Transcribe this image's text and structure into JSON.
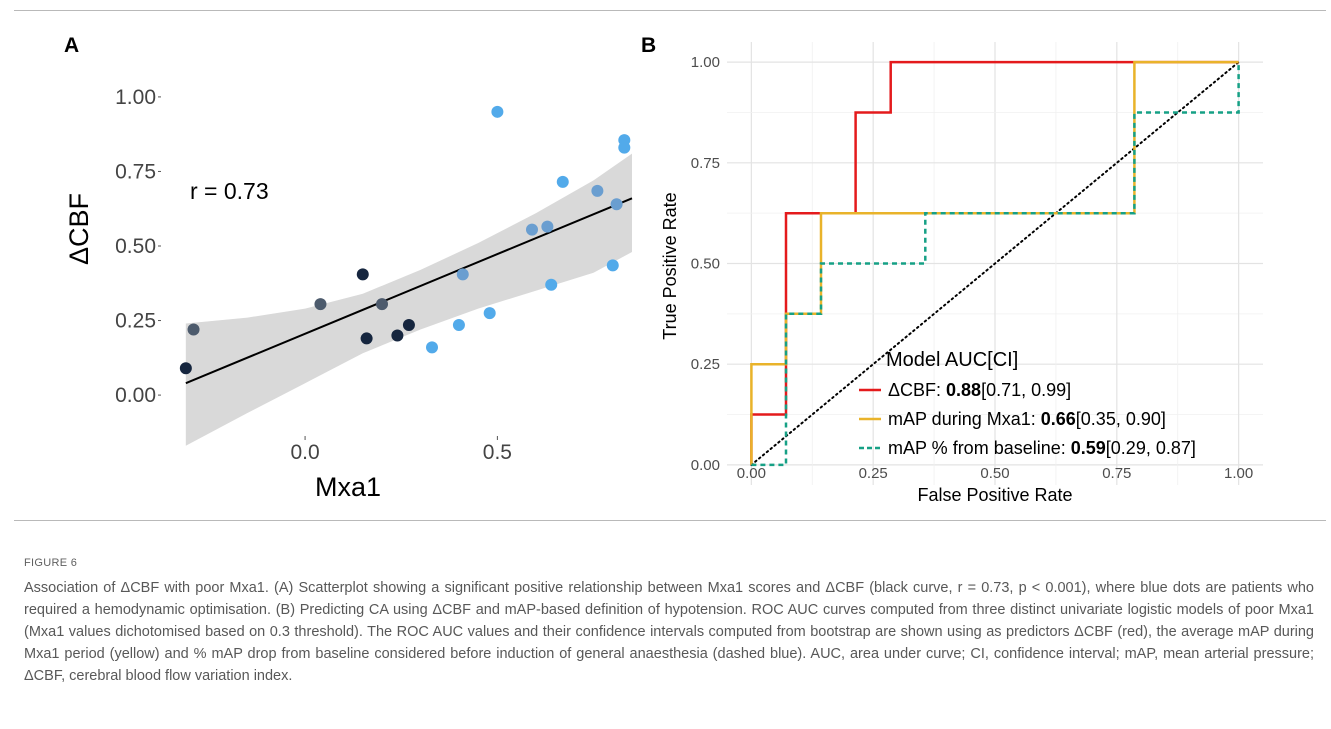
{
  "figure_label": "FIGURE 6",
  "caption": "Association of ΔCBF with poor Mxa1. (A) Scatterplot showing a significant positive relationship between Mxa1 scores and ΔCBF (black curve, r = 0.73, p < 0.001), where blue dots are patients who required a hemodynamic optimisation. (B) Predicting CA using ΔCBF and mAP-based definition of hypotension. ROC AUC curves computed from three distinct univariate logistic models of poor Mxa1 (Mxa1 values dichotomised based on 0.3 threshold). The ROC AUC values and their confidence intervals computed from bootstrap are shown using as predictors ΔCBF (red), the average mAP during Mxa1 period (yellow) and % mAP drop from baseline considered before induction of general anaesthesia (dashed blue). AUC, area under curve; CI, confidence interval; mAP, mean arterial pressure; ΔCBF, cerebral blood flow variation index.",
  "chart_data": [
    {
      "panel": "A",
      "type": "scatter",
      "xlabel": "Mxa1",
      "ylabel": "ΔCBF",
      "annotation": "r =  0.73",
      "xlim": [
        -0.32,
        0.85
      ],
      "ylim": [
        -0.05,
        1.05
      ],
      "x_ticks": [
        {
          "value": 0.0,
          "label": "0.0"
        },
        {
          "value": 0.5,
          "label": "0.5"
        }
      ],
      "y_ticks": [
        {
          "value": 0.0,
          "label": "0.00"
        },
        {
          "value": 0.25,
          "label": "0.25"
        },
        {
          "value": 0.5,
          "label": "0.50"
        },
        {
          "value": 0.75,
          "label": "0.75"
        },
        {
          "value": 1.0,
          "label": "1.00"
        }
      ],
      "grid": false,
      "colors": {
        "dark": "#16263f",
        "slate": "#4d5b6d",
        "mid": "#6a9ed0",
        "blue": "#52aaea",
        "band": "#d9d9d9",
        "line": "#000000"
      },
      "regression_line": {
        "start": [
          -0.31,
          0.04
        ],
        "end": [
          0.85,
          0.66
        ]
      },
      "confidence_band": {
        "x": [
          -0.31,
          -0.15,
          0.0,
          0.15,
          0.3,
          0.45,
          0.6,
          0.75,
          0.85
        ],
        "upper": [
          0.24,
          0.26,
          0.29,
          0.34,
          0.42,
          0.51,
          0.61,
          0.72,
          0.81
        ],
        "lower": [
          -0.17,
          -0.06,
          0.04,
          0.14,
          0.22,
          0.29,
          0.35,
          0.41,
          0.48
        ]
      },
      "points": [
        {
          "x": -0.31,
          "y": 0.09,
          "group": "dark"
        },
        {
          "x": -0.29,
          "y": 0.22,
          "group": "slate"
        },
        {
          "x": 0.04,
          "y": 0.305,
          "group": "slate"
        },
        {
          "x": 0.15,
          "y": 0.405,
          "group": "dark"
        },
        {
          "x": 0.16,
          "y": 0.19,
          "group": "dark"
        },
        {
          "x": 0.2,
          "y": 0.305,
          "group": "slate"
        },
        {
          "x": 0.24,
          "y": 0.2,
          "group": "dark"
        },
        {
          "x": 0.27,
          "y": 0.235,
          "group": "dark"
        },
        {
          "x": 0.33,
          "y": 0.16,
          "group": "blue"
        },
        {
          "x": 0.4,
          "y": 0.235,
          "group": "blue"
        },
        {
          "x": 0.41,
          "y": 0.405,
          "group": "mid"
        },
        {
          "x": 0.48,
          "y": 0.275,
          "group": "blue"
        },
        {
          "x": 0.5,
          "y": 0.95,
          "group": "blue"
        },
        {
          "x": 0.59,
          "y": 0.555,
          "group": "mid"
        },
        {
          "x": 0.63,
          "y": 0.565,
          "group": "mid"
        },
        {
          "x": 0.64,
          "y": 0.37,
          "group": "blue"
        },
        {
          "x": 0.67,
          "y": 0.715,
          "group": "blue"
        },
        {
          "x": 0.76,
          "y": 0.685,
          "group": "mid"
        },
        {
          "x": 0.8,
          "y": 0.435,
          "group": "blue"
        },
        {
          "x": 0.81,
          "y": 0.64,
          "group": "mid"
        },
        {
          "x": 0.83,
          "y": 0.83,
          "group": "blue"
        },
        {
          "x": 0.83,
          "y": 0.855,
          "group": "blue"
        }
      ]
    },
    {
      "panel": "B",
      "type": "line",
      "xlabel": "False Positive Rate",
      "ylabel": "True Positive Rate",
      "xlim": [
        -0.05,
        1.05
      ],
      "ylim": [
        -0.05,
        1.05
      ],
      "ticks": [
        {
          "value": 0.0,
          "label": "0.00"
        },
        {
          "value": 0.25,
          "label": "0.25"
        },
        {
          "value": 0.5,
          "label": "0.50"
        },
        {
          "value": 0.75,
          "label": "0.75"
        },
        {
          "value": 1.0,
          "label": "1.00"
        }
      ],
      "grid": true,
      "legend_title": "Model AUC[CI]",
      "legend_position": "bottom-right",
      "diagonal": {
        "color": "#000000",
        "style": "dotted"
      },
      "series": [
        {
          "name": "ΔCBF: ",
          "auc": "0.88",
          "ci": "[0.71, 0.99]",
          "color": "#e41a1c",
          "style": "solid",
          "x": [
            0,
            0,
            0.071,
            0.071,
            0.214,
            0.214,
            0.286,
            0.286,
            1
          ],
          "y": [
            0,
            0.125,
            0.125,
            0.625,
            0.625,
            0.875,
            0.875,
            1,
            1
          ]
        },
        {
          "name": "mAP during Mxa1: ",
          "auc": "0.66",
          "ci": "[0.35, 0.90]",
          "color": "#e9b32a",
          "style": "solid",
          "x": [
            0,
            0,
            0.071,
            0.071,
            0.143,
            0.143,
            0.786,
            0.786,
            1
          ],
          "y": [
            0,
            0.25,
            0.25,
            0.375,
            0.375,
            0.625,
            0.625,
            1,
            1
          ]
        },
        {
          "name": "mAP % from baseline: ",
          "auc": "0.59",
          "ci": "[0.29, 0.87]",
          "color": "#16a085",
          "style": "dashed",
          "x": [
            0,
            0.071,
            0.071,
            0.143,
            0.143,
            0.357,
            0.357,
            0.786,
            0.786,
            1,
            1
          ],
          "y": [
            0,
            0,
            0.375,
            0.375,
            0.5,
            0.5,
            0.625,
            0.625,
            0.875,
            0.875,
            1
          ]
        }
      ]
    }
  ],
  "panel_labels": {
    "a": "A",
    "b": "B"
  }
}
